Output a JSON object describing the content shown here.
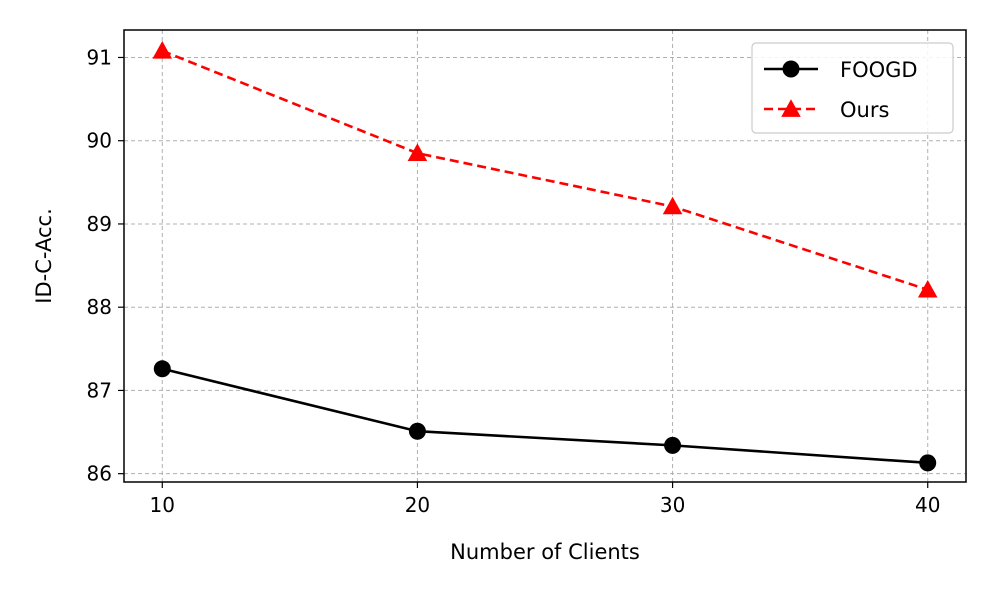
{
  "chart_data": {
    "type": "line",
    "title": "",
    "xlabel": "Number of Clients",
    "ylabel": "ID-C-Acc.",
    "x": [
      10,
      20,
      30,
      40
    ],
    "xticks": [
      10,
      20,
      30,
      40
    ],
    "yticks": [
      86,
      87,
      88,
      89,
      90,
      91
    ],
    "xlim": [
      8.5,
      41.5
    ],
    "ylim": [
      85.9,
      91.33
    ],
    "grid": true,
    "legend_position": "top-right",
    "series": [
      {
        "name": "FOOGD",
        "values": [
          87.26,
          86.51,
          86.34,
          86.13
        ],
        "color": "#000000",
        "marker": "circle",
        "line_style": "solid"
      },
      {
        "name": "Ours",
        "values": [
          91.08,
          89.85,
          89.21,
          88.21
        ],
        "color": "#ff0000",
        "marker": "triangle",
        "line_style": "dashed"
      }
    ]
  }
}
